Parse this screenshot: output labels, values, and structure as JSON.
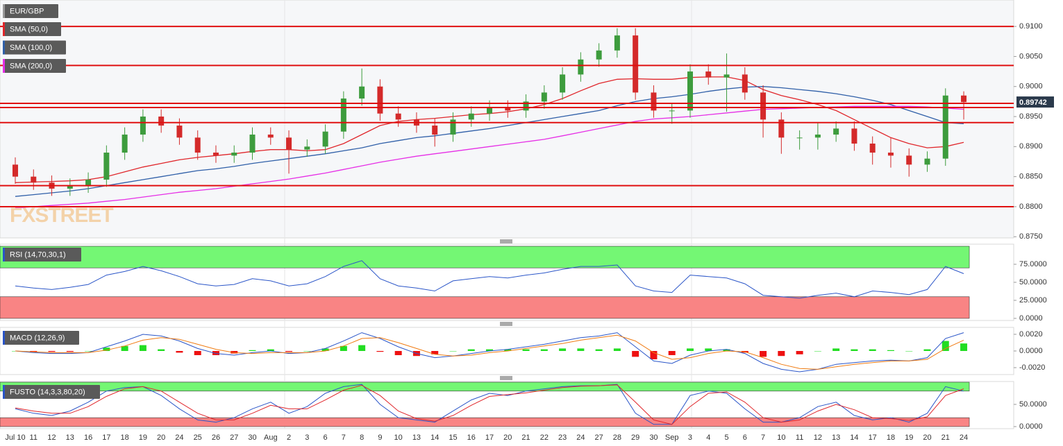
{
  "chart_data": [
    {
      "type": "candlestick",
      "title": "EUR/GBP",
      "watermark": "FXSTREET",
      "categories": [
        "Jul 10",
        "11",
        "12",
        "13",
        "16",
        "17",
        "18",
        "19",
        "20",
        "24",
        "25",
        "26",
        "27",
        "30",
        "Aug",
        "2",
        "3",
        "6",
        "7",
        "8",
        "9",
        "10",
        "13",
        "14",
        "15",
        "16",
        "17",
        "20",
        "21",
        "22",
        "23",
        "24",
        "27",
        "28",
        "29",
        "30",
        "Sep",
        "3",
        "4",
        "5",
        "6",
        "7",
        "10",
        "11",
        "12",
        "13",
        "14",
        "17",
        "18",
        "19",
        "20",
        "21",
        "24"
      ],
      "open": [
        0.887,
        0.885,
        0.884,
        0.883,
        0.8835,
        0.8845,
        0.889,
        0.892,
        0.895,
        0.8935,
        0.8915,
        0.889,
        0.8885,
        0.889,
        0.892,
        0.8915,
        0.8895,
        0.89,
        0.8925,
        0.898,
        0.9,
        0.8955,
        0.8945,
        0.8935,
        0.892,
        0.8945,
        0.8955,
        0.8965,
        0.896,
        0.8975,
        0.899,
        0.902,
        0.9045,
        0.906,
        0.9085,
        0.899,
        0.896,
        0.896,
        0.9025,
        0.9015,
        0.902,
        0.899,
        0.8945,
        0.8915,
        0.8915,
        0.892,
        0.893,
        0.8905,
        0.889,
        0.8885,
        0.887,
        0.888,
        0.8985
      ],
      "high": [
        0.8882,
        0.8862,
        0.8852,
        0.8847,
        0.8857,
        0.8902,
        0.8932,
        0.8962,
        0.8962,
        0.8947,
        0.8927,
        0.8902,
        0.8902,
        0.8932,
        0.8932,
        0.8927,
        0.8912,
        0.8937,
        0.8992,
        0.903,
        0.9012,
        0.8967,
        0.8957,
        0.8947,
        0.8957,
        0.8967,
        0.8977,
        0.8977,
        0.8987,
        0.9002,
        0.9032,
        0.9057,
        0.9072,
        0.9097,
        0.9097,
        0.9002,
        0.8972,
        0.9037,
        0.9037,
        0.9055,
        0.9032,
        0.9002,
        0.8957,
        0.8927,
        0.894,
        0.8942,
        0.8942,
        0.8917,
        0.8915,
        0.8897,
        0.8892,
        0.8997,
        0.8992
      ],
      "low": [
        0.8838,
        0.8828,
        0.8818,
        0.8818,
        0.8823,
        0.8833,
        0.8878,
        0.8908,
        0.8923,
        0.8903,
        0.8878,
        0.8873,
        0.8873,
        0.8878,
        0.8903,
        0.8855,
        0.8883,
        0.8888,
        0.8913,
        0.8968,
        0.8943,
        0.8933,
        0.8923,
        0.89,
        0.8908,
        0.8933,
        0.8943,
        0.8948,
        0.8948,
        0.8963,
        0.8978,
        0.9008,
        0.9033,
        0.9048,
        0.8978,
        0.8948,
        0.8938,
        0.8948,
        0.9003,
        0.8958,
        0.8978,
        0.8915,
        0.8888,
        0.8895,
        0.8895,
        0.8908,
        0.8893,
        0.887,
        0.8865,
        0.885,
        0.8858,
        0.8868,
        0.8945
      ],
      "close": [
        0.885,
        0.884,
        0.883,
        0.8835,
        0.8845,
        0.889,
        0.892,
        0.895,
        0.8935,
        0.8915,
        0.889,
        0.8885,
        0.889,
        0.892,
        0.8915,
        0.8895,
        0.89,
        0.8925,
        0.898,
        0.9,
        0.8955,
        0.8945,
        0.8935,
        0.892,
        0.8945,
        0.8955,
        0.8965,
        0.896,
        0.8975,
        0.899,
        0.902,
        0.9045,
        0.906,
        0.9085,
        0.899,
        0.896,
        0.896,
        0.9025,
        0.9015,
        0.902,
        0.899,
        0.8945,
        0.8915,
        0.8915,
        0.892,
        0.893,
        0.8905,
        0.889,
        0.8885,
        0.887,
        0.888,
        0.8985,
        0.8974
      ],
      "up_color": "#3d9c3d",
      "down_color": "#d42a2a",
      "series": [
        {
          "name": "SMA (50,0)",
          "color": "#e0262b",
          "values": [
            0.884,
            0.8841,
            0.8842,
            0.8843,
            0.8845,
            0.885,
            0.8858,
            0.8866,
            0.8872,
            0.8878,
            0.8882,
            0.8885,
            0.8888,
            0.8892,
            0.8895,
            0.8895,
            0.8893,
            0.8895,
            0.8905,
            0.892,
            0.8935,
            0.8942,
            0.8945,
            0.8947,
            0.895,
            0.8953,
            0.8955,
            0.8958,
            0.8963,
            0.897,
            0.898,
            0.8993,
            0.9005,
            0.9012,
            0.9013,
            0.9012,
            0.9012,
            0.9015,
            0.9016,
            0.9016,
            0.901,
            0.8995,
            0.8985,
            0.8978,
            0.897,
            0.896,
            0.8945,
            0.893,
            0.8915,
            0.8905,
            0.8898,
            0.89,
            0.8907
          ]
        },
        {
          "name": "SMA (100,0)",
          "color": "#2f5fa8",
          "values": [
            0.8817,
            0.882,
            0.8823,
            0.8826,
            0.883,
            0.8835,
            0.884,
            0.8845,
            0.885,
            0.8855,
            0.886,
            0.8863,
            0.8867,
            0.8872,
            0.8876,
            0.888,
            0.8884,
            0.8888,
            0.8893,
            0.8898,
            0.8905,
            0.891,
            0.8915,
            0.8918,
            0.8922,
            0.8926,
            0.893,
            0.8935,
            0.894,
            0.8945,
            0.895,
            0.8955,
            0.896,
            0.8968,
            0.8975,
            0.898,
            0.8983,
            0.8987,
            0.8992,
            0.8996,
            0.8999,
            0.9,
            0.8998,
            0.8995,
            0.8992,
            0.8988,
            0.8983,
            0.8977,
            0.897,
            0.896,
            0.895,
            0.894,
            0.8938
          ]
        },
        {
          "name": "SMA (200,0)",
          "color": "#e62ee6",
          "values": [
            0.8798,
            0.88,
            0.8802,
            0.8804,
            0.8806,
            0.8809,
            0.8812,
            0.8816,
            0.882,
            0.8824,
            0.8827,
            0.883,
            0.8834,
            0.8838,
            0.8842,
            0.8846,
            0.8851,
            0.8856,
            0.8862,
            0.8868,
            0.8874,
            0.8879,
            0.8884,
            0.8888,
            0.8892,
            0.8896,
            0.89,
            0.8904,
            0.8908,
            0.8912,
            0.8918,
            0.8924,
            0.893,
            0.8936,
            0.8942,
            0.8946,
            0.8948,
            0.895,
            0.8953,
            0.8956,
            0.8959,
            0.8962,
            0.8963,
            0.8964,
            0.8965,
            0.8966,
            0.8967,
            0.8967,
            0.8967,
            0.8967,
            0.8966,
            0.8964,
            0.8962
          ]
        }
      ],
      "levels": [
        0.91,
        0.9035,
        0.8972,
        0.8965,
        0.894,
        0.8835,
        0.88
      ],
      "level_color": "#e01010",
      "last_price": 0.89742,
      "ylim": [
        0.8748,
        0.9144
      ],
      "yticks": [
        {
          "value": 0.875,
          "label": "0.8750"
        },
        {
          "value": 0.88,
          "label": "0.8800"
        },
        {
          "value": 0.885,
          "label": "0.8850"
        },
        {
          "value": 0.89,
          "label": "0.8900"
        },
        {
          "value": 0.895,
          "label": "0.8950"
        },
        {
          "value": 0.9,
          "label": "0.9000"
        },
        {
          "value": 0.905,
          "label": "0.9050"
        },
        {
          "value": 0.91,
          "label": "0.9100"
        }
      ]
    },
    {
      "type": "line",
      "title": "RSI (14,70,30,1)",
      "series": [
        {
          "color": "#2a55c8",
          "values": [
            45,
            42,
            40,
            43,
            47,
            60,
            65,
            72,
            66,
            58,
            48,
            45,
            47,
            55,
            52,
            45,
            48,
            58,
            72,
            80,
            55,
            45,
            42,
            38,
            52,
            55,
            58,
            56,
            60,
            63,
            68,
            72,
            72,
            74,
            45,
            38,
            36,
            60,
            58,
            56,
            48,
            32,
            30,
            28,
            32,
            35,
            30,
            38,
            36,
            33,
            40,
            72,
            62
          ]
        }
      ],
      "zones": [
        {
          "from": 70,
          "to": 100,
          "color": "#74f774"
        },
        {
          "from": 0,
          "to": 30,
          "color": "#f98484"
        }
      ],
      "ylim": [
        -2.9,
        102.9
      ],
      "yticks": [
        {
          "value": 0,
          "label": "0.0000"
        },
        {
          "value": 25,
          "label": "25.0000"
        },
        {
          "value": 50,
          "label": "50.0000"
        },
        {
          "value": 75,
          "label": "75.0000"
        }
      ]
    },
    {
      "type": "line",
      "title": "MACD (12,26,9)",
      "histogram": {
        "up_color": "#22dd22",
        "down_color": "#ee1111",
        "values": [
          0,
          -0.0001,
          -0.0001,
          -0.0001,
          0,
          0.0004,
          0.0006,
          0.0007,
          0.0002,
          -0.0002,
          -0.0005,
          -0.0005,
          -0.0003,
          0.0001,
          0.0002,
          -0.0001,
          0,
          0.0003,
          0.0006,
          0.0007,
          -0.0001,
          -0.0005,
          -0.0006,
          -0.0004,
          0,
          0.0002,
          0.0002,
          0.0002,
          0.0002,
          0.0002,
          0.0003,
          0.0003,
          0.0002,
          0.0003,
          -0.0007,
          -0.001,
          -0.0005,
          0.0003,
          0.0003,
          0.0002,
          -0.0002,
          -0.0007,
          -0.0006,
          -0.0004,
          0,
          0.0003,
          0.0002,
          0.0002,
          0.0001,
          0,
          0.0002,
          0.0012,
          0.0009
        ]
      },
      "series": [
        {
          "color": "#2a55c8",
          "values": [
            0,
            -0.0002,
            -0.0003,
            -0.0003,
            -0.0002,
            0.0005,
            0.0012,
            0.002,
            0.0018,
            0.0012,
            0.0003,
            -0.0003,
            -0.0005,
            -0.0002,
            0,
            -0.0003,
            -0.0002,
            0.0003,
            0.0012,
            0.0022,
            0.0015,
            0.0005,
            -0.0003,
            -0.0008,
            -0.0006,
            -0.0003,
            0,
            0.0002,
            0.0005,
            0.0008,
            0.0012,
            0.0016,
            0.0018,
            0.0022,
            0.0005,
            -0.0012,
            -0.0015,
            -0.0005,
            0,
            0.0002,
            -0.0003,
            -0.0015,
            -0.0022,
            -0.0025,
            -0.0022,
            -0.0016,
            -0.0014,
            -0.0012,
            -0.0011,
            -0.0012,
            -0.0008,
            0.0015,
            0.0022
          ]
        },
        {
          "color": "#f07a10",
          "values": [
            0,
            -0.0001,
            -0.0002,
            -0.0002,
            -0.0002,
            0.0001,
            0.0006,
            0.0013,
            0.0016,
            0.0014,
            0.0008,
            0.0002,
            -0.0002,
            -0.0003,
            -0.0002,
            -0.0002,
            -0.0002,
            0,
            0.0006,
            0.0015,
            0.0016,
            0.001,
            0.0003,
            -0.0004,
            -0.0006,
            -0.0005,
            -0.0002,
            0,
            0.0003,
            0.0006,
            0.0009,
            0.0013,
            0.0016,
            0.0019,
            0.0012,
            -0.0002,
            -0.001,
            -0.0008,
            -0.0003,
            0,
            -0.0001,
            -0.0008,
            -0.0016,
            -0.0021,
            -0.0022,
            -0.0019,
            -0.0016,
            -0.0014,
            -0.0012,
            -0.0012,
            -0.001,
            0.0003,
            0.0013
          ]
        }
      ],
      "ylim": [
        -0.00283,
        0.00283
      ],
      "yticks": [
        {
          "value": -0.002,
          "label": "-0.0020"
        },
        {
          "value": 0,
          "label": "0.0000"
        },
        {
          "value": 0.002,
          "label": "0.0020"
        }
      ]
    },
    {
      "type": "line",
      "title": "FUSTO (14,3,3,80,20)",
      "series": [
        {
          "color": "#2a55c8",
          "values": [
            40,
            30,
            25,
            35,
            55,
            80,
            88,
            90,
            70,
            40,
            15,
            10,
            20,
            40,
            55,
            30,
            45,
            75,
            90,
            95,
            50,
            20,
            15,
            10,
            35,
            60,
            75,
            70,
            80,
            85,
            90,
            92,
            92,
            95,
            30,
            5,
            5,
            70,
            80,
            75,
            40,
            10,
            10,
            20,
            45,
            55,
            25,
            15,
            20,
            10,
            30,
            90,
            80
          ]
        },
        {
          "color": "#e0262b",
          "values": [
            42,
            35,
            30,
            30,
            45,
            68,
            85,
            90,
            80,
            55,
            30,
            15,
            15,
            30,
            48,
            40,
            40,
            60,
            82,
            93,
            70,
            35,
            18,
            12,
            25,
            48,
            68,
            72,
            76,
            82,
            88,
            91,
            92,
            94,
            55,
            15,
            5,
            45,
            75,
            78,
            55,
            20,
            10,
            15,
            35,
            50,
            38,
            20,
            18,
            14,
            22,
            70,
            85
          ]
        }
      ],
      "zones": [
        {
          "from": 80,
          "to": 100,
          "color": "#74f774"
        },
        {
          "from": 0,
          "to": 20,
          "color": "#f98484"
        }
      ],
      "ylim": [
        -4.7,
        101.6
      ],
      "yticks": [
        {
          "value": 0,
          "label": "0.0000"
        },
        {
          "value": 50,
          "label": "50.0000"
        }
      ]
    }
  ]
}
